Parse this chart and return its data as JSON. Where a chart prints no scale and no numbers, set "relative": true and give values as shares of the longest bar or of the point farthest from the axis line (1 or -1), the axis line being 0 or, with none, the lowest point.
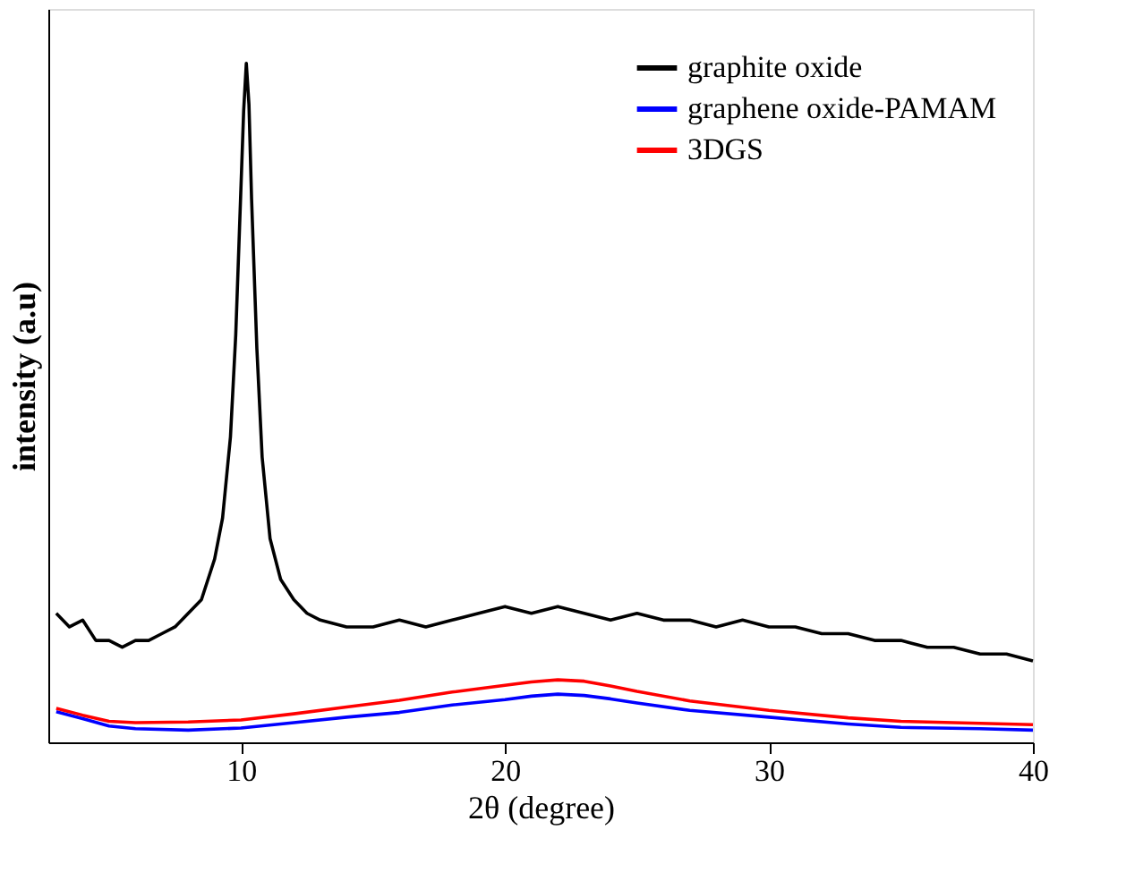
{
  "chart_data": {
    "type": "line",
    "relative": true,
    "xlabel": "2θ (degree)",
    "ylabel": "intensity (a.u)",
    "xlim": [
      2.7,
      40
    ],
    "xticks": [
      10,
      20,
      30,
      40
    ],
    "legend": "top right",
    "grid": false,
    "marker": "none",
    "line_style": "solid",
    "series": [
      {
        "name": "graphite oxide",
        "color": "#000000",
        "x": [
          3,
          3.5,
          4,
          4.5,
          5,
          5.5,
          6,
          6.5,
          7,
          7.5,
          8,
          8.5,
          9,
          9.3,
          9.6,
          9.8,
          10,
          10.1,
          10.2,
          10.3,
          10.4,
          10.6,
          10.8,
          11.1,
          11.5,
          12,
          12.5,
          13,
          14,
          15,
          16,
          17,
          18,
          19,
          20,
          21,
          22,
          23,
          24,
          25,
          26,
          27,
          28,
          29,
          30,
          31,
          32,
          33,
          34,
          35,
          36,
          37,
          38,
          39,
          40
        ],
        "values": [
          0.19,
          0.17,
          0.18,
          0.15,
          0.15,
          0.14,
          0.15,
          0.15,
          0.16,
          0.17,
          0.19,
          0.21,
          0.27,
          0.33,
          0.45,
          0.6,
          0.82,
          0.93,
          1.0,
          0.94,
          0.8,
          0.58,
          0.42,
          0.3,
          0.24,
          0.21,
          0.19,
          0.18,
          0.17,
          0.17,
          0.18,
          0.17,
          0.18,
          0.19,
          0.2,
          0.19,
          0.2,
          0.19,
          0.18,
          0.19,
          0.18,
          0.18,
          0.17,
          0.18,
          0.17,
          0.17,
          0.16,
          0.16,
          0.15,
          0.15,
          0.14,
          0.14,
          0.13,
          0.13,
          0.12
        ]
      },
      {
        "name": "graphene oxide-PAMAM",
        "color": "#0000ff",
        "x": [
          3,
          4,
          5,
          6,
          8,
          10,
          12,
          14,
          16,
          18,
          20,
          21,
          22,
          23,
          24,
          25,
          27,
          30,
          33,
          35,
          38,
          40
        ],
        "values": [
          0.045,
          0.035,
          0.024,
          0.02,
          0.018,
          0.021,
          0.029,
          0.037,
          0.044,
          0.055,
          0.063,
          0.068,
          0.071,
          0.069,
          0.064,
          0.058,
          0.047,
          0.037,
          0.027,
          0.022,
          0.02,
          0.018
        ]
      },
      {
        "name": "3DGS",
        "color": "#ff0000",
        "x": [
          3,
          4,
          5,
          6,
          8,
          10,
          12,
          14,
          16,
          18,
          20,
          21,
          22,
          23,
          24,
          25,
          27,
          30,
          33,
          35,
          38,
          40
        ],
        "values": [
          0.05,
          0.04,
          0.031,
          0.029,
          0.03,
          0.033,
          0.042,
          0.052,
          0.062,
          0.074,
          0.084,
          0.089,
          0.092,
          0.09,
          0.083,
          0.075,
          0.061,
          0.047,
          0.036,
          0.031,
          0.028,
          0.026
        ]
      }
    ]
  }
}
